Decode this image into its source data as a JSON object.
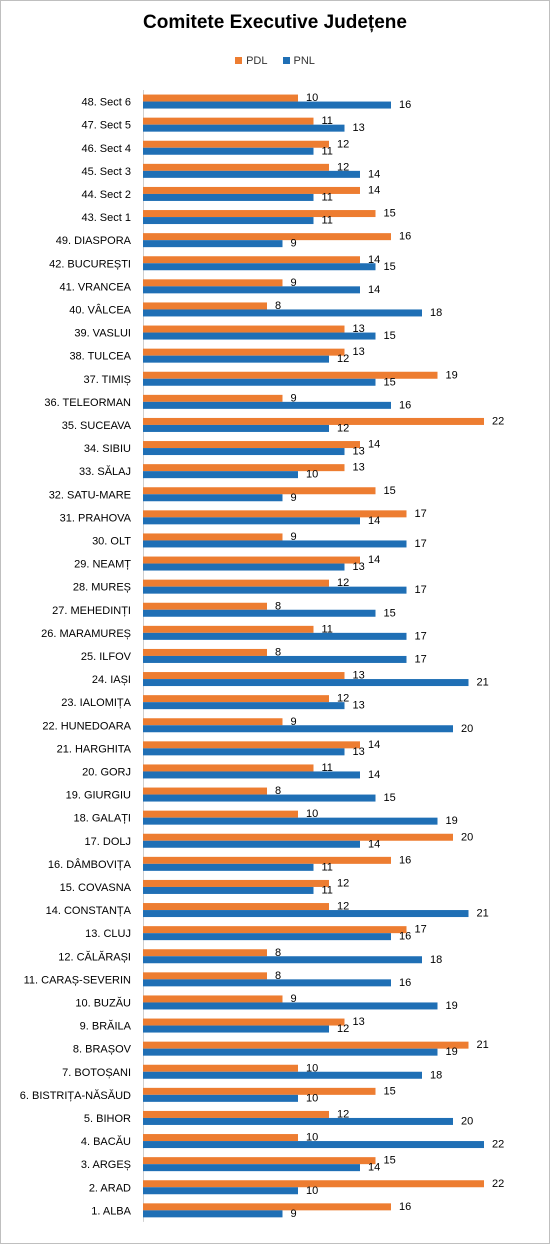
{
  "chart_data": {
    "type": "bar",
    "orientation": "horizontal",
    "title": "Comitete Executive Județene",
    "legend": "top",
    "grid": false,
    "categories": [
      "48. Sect 6",
      "47. Sect 5",
      "46. Sect 4",
      "45. Sect 3",
      "44. Sect 2",
      "43. Sect 1",
      "49. DIASPORA",
      "42. BUCUREȘTI",
      "41. VRANCEA",
      "40. VÂLCEA",
      "39. VASLUI",
      "38. TULCEA",
      "37. TIMIȘ",
      "36. TELEORMAN",
      "35. SUCEAVA",
      "34. SIBIU",
      "33. SĂLAJ",
      "32. SATU-MARE",
      "31. PRAHOVA",
      "30. OLT",
      "29. NEAMȚ",
      "28. MUREȘ",
      "27. MEHEDINȚI",
      "26. MARAMUREȘ",
      "25. ILFOV",
      "24. IAȘI",
      "23. IALOMIȚA",
      "22. HUNEDOARA",
      "21. HARGHITA",
      "20. GORJ",
      "19. GIURGIU",
      "18. GALAȚI",
      "17. DOLJ",
      "16. DÂMBOVIȚA",
      "15. COVASNA",
      "14. CONSTANȚA",
      "13. CLUJ",
      "12. CĂLĂRAȘI",
      "11. CARAȘ-SEVERIN",
      "10. BUZĂU",
      "9. BRĂILA",
      "8. BRAȘOV",
      "7. BOTOȘANI",
      "6. BISTRIȚA-NĂSĂUD",
      "5. BIHOR",
      "4. BACĂU",
      "3. ARGEȘ",
      "2. ARAD",
      "1. ALBA"
    ],
    "series": [
      {
        "name": "PDL",
        "color": "#ED7D31",
        "values": [
          10,
          11,
          12,
          12,
          14,
          15,
          16,
          14,
          9,
          8,
          13,
          13,
          19,
          9,
          22,
          14,
          13,
          15,
          17,
          9,
          14,
          12,
          8,
          11,
          8,
          13,
          12,
          9,
          14,
          11,
          8,
          10,
          20,
          16,
          12,
          12,
          17,
          8,
          8,
          9,
          13,
          21,
          10,
          15,
          12,
          10,
          15,
          22,
          16
        ]
      },
      {
        "name": "PNL",
        "color": "#1F6FB5",
        "values": [
          16,
          13,
          11,
          14,
          11,
          11,
          9,
          15,
          14,
          18,
          15,
          12,
          15,
          16,
          12,
          13,
          10,
          9,
          14,
          17,
          13,
          17,
          15,
          17,
          17,
          21,
          13,
          20,
          13,
          14,
          15,
          19,
          14,
          11,
          11,
          21,
          16,
          18,
          16,
          19,
          12,
          19,
          18,
          10,
          20,
          22,
          14,
          10,
          9
        ]
      }
    ]
  }
}
